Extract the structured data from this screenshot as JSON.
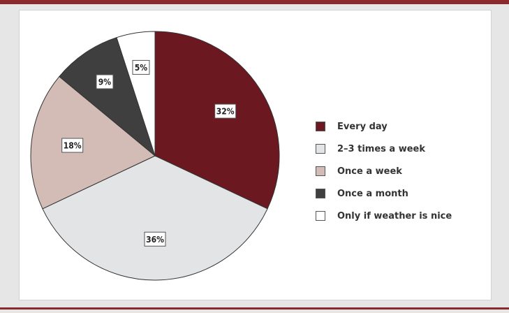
{
  "chart_data": {
    "type": "pie",
    "title": "",
    "slices": [
      {
        "label": "Every day",
        "value": 32,
        "display": "32%",
        "color": "#6b1820"
      },
      {
        "label": "2–3 times a week",
        "value": 36,
        "display": "36%",
        "color": "#e3e4e6"
      },
      {
        "label": "Once a week",
        "value": 18,
        "display": "18%",
        "color": "#d4bcb6"
      },
      {
        "label": "Once a month",
        "value": 9,
        "display": "9%",
        "color": "#3f3f3f"
      },
      {
        "label": "Only if weather is nice",
        "value": 5,
        "display": "5%",
        "color": "#ffffff"
      }
    ],
    "start_angle_deg": 0,
    "direction": "clockwise",
    "legend_position": "right"
  },
  "colors": {
    "accent_rule": "#8b2a2e",
    "background": "#e6e6e6",
    "panel": "#ffffff"
  }
}
